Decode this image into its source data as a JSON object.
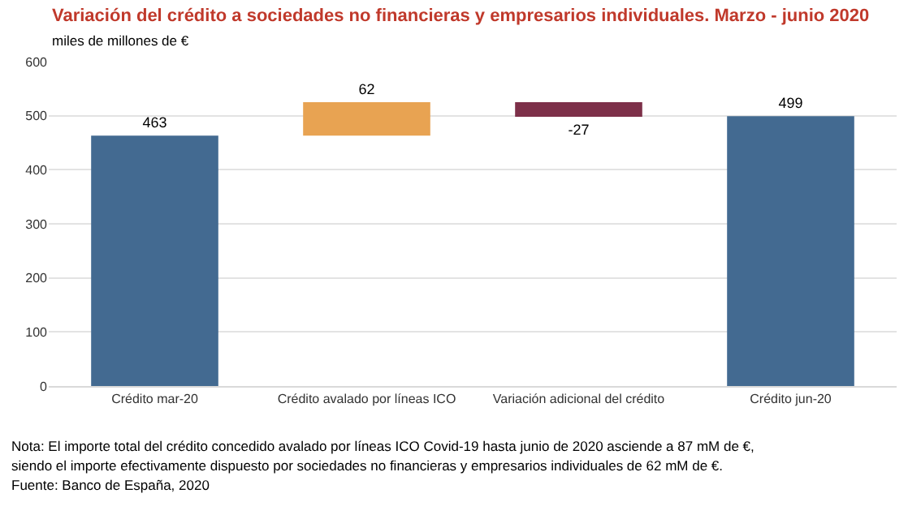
{
  "chart_data": {
    "type": "bar",
    "title": "Variación del crédito a sociedades no financieras y empresarios individuales. Marzo - junio 2020",
    "subtitle": "miles de millones de €",
    "categories": [
      "Crédito mar-20",
      "Crédito avalado por líneas ICO",
      "Variación adicional del crédito",
      "Crédito jun-20"
    ],
    "values": [
      463,
      62,
      -27,
      499
    ],
    "base": [
      0,
      463,
      525,
      0
    ],
    "colors": [
      "#436a91",
      "#e8a352",
      "#7d3049",
      "#436a91"
    ],
    "data_labels": true,
    "ylim": [
      0,
      600
    ],
    "yticks": [
      0,
      100,
      200,
      300,
      400,
      500,
      600
    ],
    "grid": "y",
    "annotations": [
      "Nota: El importe total del crédito concedido avalado por líneas ICO Covid-19 hasta junio de 2020 asciende a 87 mM de €,",
      "siendo el importe efectivamente dispuesto por sociedades no financieras y empresarios individuales de 62 mM de €.",
      "Fuente: Banco de España, 2020"
    ]
  }
}
